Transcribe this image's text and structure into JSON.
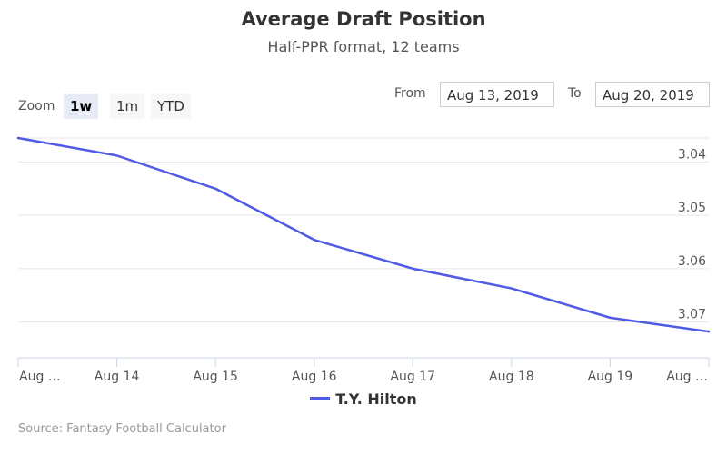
{
  "title": "Average Draft Position",
  "subtitle": "Half-PPR format, 12 teams",
  "zoom": {
    "label": "Zoom",
    "buttons": [
      "1w",
      "1m",
      "YTD"
    ],
    "active": "1w"
  },
  "range": {
    "from_label": "From",
    "from_value": "Aug 13, 2019",
    "to_label": "To",
    "to_value": "Aug 20, 2019"
  },
  "legend": {
    "label": "T.Y. Hilton"
  },
  "credits": "Source: Fantasy Football Calculator",
  "colors": {
    "series": "#4f5ae6",
    "grid": "#e6e6e6",
    "axis": "#ccd6eb"
  },
  "chart_data": {
    "type": "line",
    "x_tick_labels": [
      "Aug …",
      "Aug 14",
      "Aug 15",
      "Aug 16",
      "Aug 17",
      "Aug 18",
      "Aug 19",
      "Aug …"
    ],
    "x": [
      "Aug 13",
      "Aug 14",
      "Aug 15",
      "Aug 16",
      "Aug 17",
      "Aug 18",
      "Aug 19",
      "Aug 20"
    ],
    "y_ticks": [
      3.04,
      3.05,
      3.06,
      3.07
    ],
    "y_tick_labels": [
      "3.04",
      "3.05",
      "3.06",
      "3.07"
    ],
    "y_reversed": true,
    "ylim": [
      3.0355,
      3.0745
    ],
    "grid": true,
    "legend_position": "bottom-center",
    "series": [
      {
        "name": "T.Y. Hilton",
        "values": [
          3.0355,
          3.0388,
          3.045,
          3.0546,
          3.06,
          3.0637,
          3.0692,
          3.0718
        ]
      }
    ]
  }
}
